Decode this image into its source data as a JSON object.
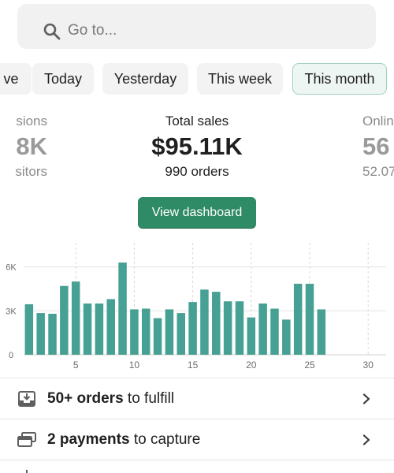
{
  "search": {
    "placeholder": "Go to..."
  },
  "periods": [
    {
      "label": "ve",
      "active": false
    },
    {
      "label": "Today",
      "active": false
    },
    {
      "label": "Yesterday",
      "active": false
    },
    {
      "label": "This week",
      "active": false
    },
    {
      "label": "This month",
      "active": true
    }
  ],
  "metrics": {
    "left": {
      "label": "sions",
      "value": "8K",
      "sub": "sitors"
    },
    "center": {
      "label": "Total sales",
      "value": "$95.11K",
      "sub": "990 orders"
    },
    "right": {
      "label": "Onlin",
      "value": "56",
      "sub": "52.07"
    }
  },
  "view_dashboard_label": "View dashboard",
  "chart_data": {
    "type": "bar",
    "title": "",
    "xlabel": "",
    "ylabel": "",
    "x": [
      1,
      2,
      3,
      4,
      5,
      6,
      7,
      8,
      9,
      10,
      11,
      12,
      13,
      14,
      15,
      16,
      17,
      18,
      19,
      20,
      21,
      22,
      23,
      24,
      25,
      26
    ],
    "values": [
      3450,
      2850,
      2800,
      4700,
      5000,
      3500,
      3500,
      3800,
      6300,
      3100,
      3150,
      2500,
      3100,
      2850,
      3600,
      4450,
      4300,
      3650,
      3650,
      2550,
      3500,
      3150,
      2400,
      4850,
      4850,
      3100
    ],
    "ylim": [
      0,
      7000
    ],
    "xlim": [
      0,
      31
    ],
    "yticks": [
      0,
      3000,
      6000
    ],
    "ytick_labels": [
      "0",
      "3K",
      "6K"
    ],
    "xticks": [
      5,
      10,
      15,
      20,
      25,
      30
    ],
    "xtick_labels": [
      "5",
      "10",
      "15",
      "20",
      "25",
      "30"
    ],
    "bar_color": "#46a093",
    "grid": true
  },
  "tasks": [
    {
      "bold": "50+ orders",
      "rest": " to fulfill",
      "icon": "download-tray-icon"
    },
    {
      "bold": "2 payments",
      "rest": " to capture",
      "icon": "credit-cards-icon"
    }
  ]
}
